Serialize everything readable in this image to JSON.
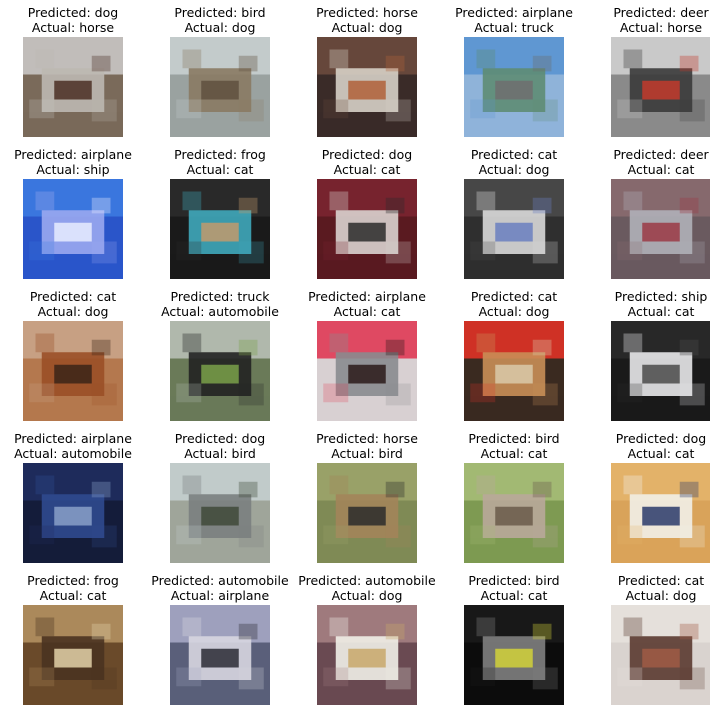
{
  "cells": [
    {
      "pred": "Predicted: dog",
      "act": "Actual: horse",
      "image": "horse-photo",
      "palette": {
        "bg": "#7a6a5a",
        "top": "#c9c6c4",
        "mid": "#bdb8b1",
        "accent": "#4b2f24"
      }
    },
    {
      "pred": "Predicted: bird",
      "act": "Actual: dog",
      "image": "dog-photo",
      "palette": {
        "bg": "#9aa2a0",
        "top": "#c8cfcf",
        "mid": "#8a7a63",
        "accent": "#5f5040"
      }
    },
    {
      "pred": "Predicted: horse",
      "act": "Actual: dog",
      "image": "dog-photo",
      "palette": {
        "bg": "#3a2b28",
        "top": "#6b4a3d",
        "mid": "#d7d0c6",
        "accent": "#b0603a"
      }
    },
    {
      "pred": "Predicted: airplane",
      "act": "Actual: truck",
      "image": "truck-photo",
      "palette": {
        "bg": "#8fb3d9",
        "top": "#5a93d0",
        "mid": "#5e8c73",
        "accent": "#6e6e6e"
      }
    },
    {
      "pred": "Predicted: deer",
      "act": "Actual: horse",
      "image": "horse-photo",
      "palette": {
        "bg": "#8a8a8a",
        "top": "#cfcfcf",
        "mid": "#3a3a3a",
        "accent": "#c23a2c"
      }
    },
    {
      "pred": "Predicted: airplane",
      "act": "Actual: ship",
      "image": "ship-photo",
      "palette": {
        "bg": "#2a55c9",
        "top": "#3c7ae0",
        "mid": "#9aa8ef",
        "accent": "#e8ecff"
      }
    },
    {
      "pred": "Predicted: frog",
      "act": "Actual: cat",
      "image": "cat-photo",
      "palette": {
        "bg": "#1a1a1a",
        "top": "#2b2b2b",
        "mid": "#3fa8bb",
        "accent": "#c29a6c"
      }
    },
    {
      "pred": "Predicted: dog",
      "act": "Actual: cat",
      "image": "cat-photo",
      "palette": {
        "bg": "#5a1a20",
        "top": "#7a2530",
        "mid": "#d9d3cf",
        "accent": "#2b2b2b"
      }
    },
    {
      "pred": "Predicted: cat",
      "act": "Actual: dog",
      "image": "dog-photo",
      "palette": {
        "bg": "#2f2f2f",
        "top": "#4a4a4a",
        "mid": "#d9d9d9",
        "accent": "#6a7fbf"
      }
    },
    {
      "pred": "Predicted: deer",
      "act": "Actual: cat",
      "image": "cat-photo",
      "palette": {
        "bg": "#6a5a5f",
        "top": "#8a6a6f",
        "mid": "#b0b0b8",
        "accent": "#9b3a45"
      }
    },
    {
      "pred": "Predicted: cat",
      "act": "Actual: dog",
      "image": "dog-photo",
      "palette": {
        "bg": "#b4784e",
        "top": "#c9a48a",
        "mid": "#9a4f27",
        "accent": "#3b2417"
      }
    },
    {
      "pred": "Predicted: truck",
      "act": "Actual: automobile",
      "image": "automobile-photo",
      "palette": {
        "bg": "#6a7a58",
        "top": "#b8bfb6",
        "mid": "#222222",
        "accent": "#7aa14a"
      }
    },
    {
      "pred": "Predicted: airplane",
      "act": "Actual: cat",
      "image": "cat-photo",
      "palette": {
        "bg": "#d8d0d2",
        "top": "#e03a55",
        "mid": "#8a8b8f",
        "accent": "#2a1a1a"
      }
    },
    {
      "pred": "Predicted: cat",
      "act": "Actual: dog",
      "image": "dog-photo",
      "palette": {
        "bg": "#3a2a20",
        "top": "#e03226",
        "mid": "#c98e56",
        "accent": "#d9c9a9"
      }
    },
    {
      "pred": "Predicted: ship",
      "act": "Actual: cat",
      "image": "cat-photo",
      "palette": {
        "bg": "#1a1a1a",
        "top": "#2a2a2a",
        "mid": "#e8e8ea",
        "accent": "#4a4a4a"
      }
    },
    {
      "pred": "Predicted: airplane",
      "act": "Actual: automobile",
      "image": "automobile-photo",
      "palette": {
        "bg": "#141c3a",
        "top": "#1f2d5f",
        "mid": "#2f4a8f",
        "accent": "#8aa0c8"
      }
    },
    {
      "pred": "Predicted: dog",
      "act": "Actual: bird",
      "image": "bird-photo",
      "palette": {
        "bg": "#9fa59a",
        "top": "#c4cfcf",
        "mid": "#7a7f80",
        "accent": "#3f4a3a"
      }
    },
    {
      "pred": "Predicted: horse",
      "act": "Actual: bird",
      "image": "bird-photo",
      "palette": {
        "bg": "#7f8a55",
        "top": "#9ca36a",
        "mid": "#a3845a",
        "accent": "#2b2b2b"
      }
    },
    {
      "pred": "Predicted: bird",
      "act": "Actual: cat",
      "image": "cat-photo",
      "palette": {
        "bg": "#7e9a52",
        "top": "#a6bd77",
        "mid": "#b9a89a",
        "accent": "#6a5a4a"
      }
    },
    {
      "pred": "Predicted: dog",
      "act": "Actual: cat",
      "image": "cat-photo",
      "palette": {
        "bg": "#d9a35a",
        "top": "#e3b46a",
        "mid": "#f1efe8",
        "accent": "#2a3a6a"
      }
    },
    {
      "pred": "Predicted: frog",
      "act": "Actual: cat",
      "image": "cat-photo",
      "palette": {
        "bg": "#6a4a2a",
        "top": "#b39060",
        "mid": "#4a3320",
        "accent": "#e3d1a8"
      }
    },
    {
      "pred": "Predicted: automobile",
      "act": "Actual: airplane",
      "image": "airplane-photo",
      "palette": {
        "bg": "#5a5f7a",
        "top": "#a5a7c4",
        "mid": "#d7d6e0",
        "accent": "#2b2b35"
      }
    },
    {
      "pred": "Predicted: automobile",
      "act": "Actual: dog",
      "image": "dog-photo",
      "palette": {
        "bg": "#6a4a52",
        "top": "#a57f82",
        "mid": "#f1efe8",
        "accent": "#c8a86a"
      }
    },
    {
      "pred": "Predicted: bird",
      "act": "Actual: cat",
      "image": "cat-photo",
      "palette": {
        "bg": "#0c0c0c",
        "top": "#1a1a1a",
        "mid": "#7f7f7f",
        "accent": "#d2d23a"
      }
    },
    {
      "pred": "Predicted: cat",
      "act": "Actual: dog",
      "image": "dog-photo",
      "palette": {
        "bg": "#d9d3cf",
        "top": "#e6e1dc",
        "mid": "#5a3a30",
        "accent": "#a05a45"
      }
    }
  ]
}
